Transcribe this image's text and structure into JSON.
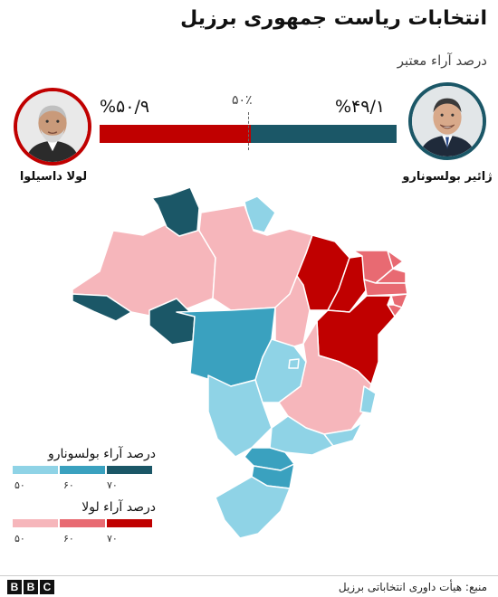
{
  "title": "انتخابات ریاست جمهوری برزیل",
  "subtitle": "درصد آراء معتبر",
  "candidates": {
    "lula": {
      "name": "لولا داسیلوا",
      "percent_label": "%۵۰/۹",
      "percent": 50.9,
      "color": "#c00000",
      "photo_icon": "lula-portrait-icon"
    },
    "bolsonaro": {
      "name": "ژائیر بولسونارو",
      "percent_label": "%۴۹/۱",
      "percent": 49.1,
      "color": "#1b5767",
      "photo_icon": "bolsonaro-portrait-icon"
    }
  },
  "midpoint_label": "۵۰٪",
  "legend": {
    "bolsonaro": {
      "title": "درصد آراء بولسونارو",
      "colors": [
        "#8fd3e6",
        "#3aa1bf",
        "#1b5767"
      ],
      "ticks": [
        "۵۰",
        "۶۰",
        "۷۰"
      ]
    },
    "lula": {
      "title": "درصد آراء لولا",
      "colors": [
        "#f6b6bb",
        "#e86a72",
        "#c00000"
      ],
      "ticks": [
        "۵۰",
        "۶۰",
        "۷۰"
      ]
    }
  },
  "map": {
    "states": [
      {
        "id": "RR",
        "winner": "bolsonaro",
        "band": 3
      },
      {
        "id": "AP",
        "winner": "bolsonaro",
        "band": 1
      },
      {
        "id": "AM",
        "winner": "lula",
        "band": 1
      },
      {
        "id": "PA",
        "winner": "lula",
        "band": 1
      },
      {
        "id": "AC",
        "winner": "bolsonaro",
        "band": 3
      },
      {
        "id": "RO",
        "winner": "bolsonaro",
        "band": 3
      },
      {
        "id": "MT",
        "winner": "bolsonaro",
        "band": 2
      },
      {
        "id": "TO",
        "winner": "lula",
        "band": 1
      },
      {
        "id": "MA",
        "winner": "lula",
        "band": 3
      },
      {
        "id": "PI",
        "winner": "lula",
        "band": 3
      },
      {
        "id": "CE",
        "winner": "lula",
        "band": 2
      },
      {
        "id": "RN",
        "winner": "lula",
        "band": 2
      },
      {
        "id": "PB",
        "winner": "lula",
        "band": 2
      },
      {
        "id": "PE",
        "winner": "lula",
        "band": 2
      },
      {
        "id": "AL",
        "winner": "lula",
        "band": 2
      },
      {
        "id": "SE",
        "winner": "lula",
        "band": 2
      },
      {
        "id": "BA",
        "winner": "lula",
        "band": 3
      },
      {
        "id": "GO",
        "winner": "bolsonaro",
        "band": 1
      },
      {
        "id": "DF",
        "winner": "bolsonaro",
        "band": 1
      },
      {
        "id": "MG",
        "winner": "lula",
        "band": 1
      },
      {
        "id": "ES",
        "winner": "bolsonaro",
        "band": 1
      },
      {
        "id": "MS",
        "winner": "bolsonaro",
        "band": 1
      },
      {
        "id": "SP",
        "winner": "bolsonaro",
        "band": 1
      },
      {
        "id": "RJ",
        "winner": "bolsonaro",
        "band": 1
      },
      {
        "id": "PR",
        "winner": "bolsonaro",
        "band": 2
      },
      {
        "id": "SC",
        "winner": "bolsonaro",
        "band": 2
      },
      {
        "id": "RS",
        "winner": "bolsonaro",
        "band": 1
      }
    ]
  },
  "source": "منبع: هیأت داوری انتخاباتی برزیل",
  "brand": [
    "B",
    "B",
    "C"
  ]
}
